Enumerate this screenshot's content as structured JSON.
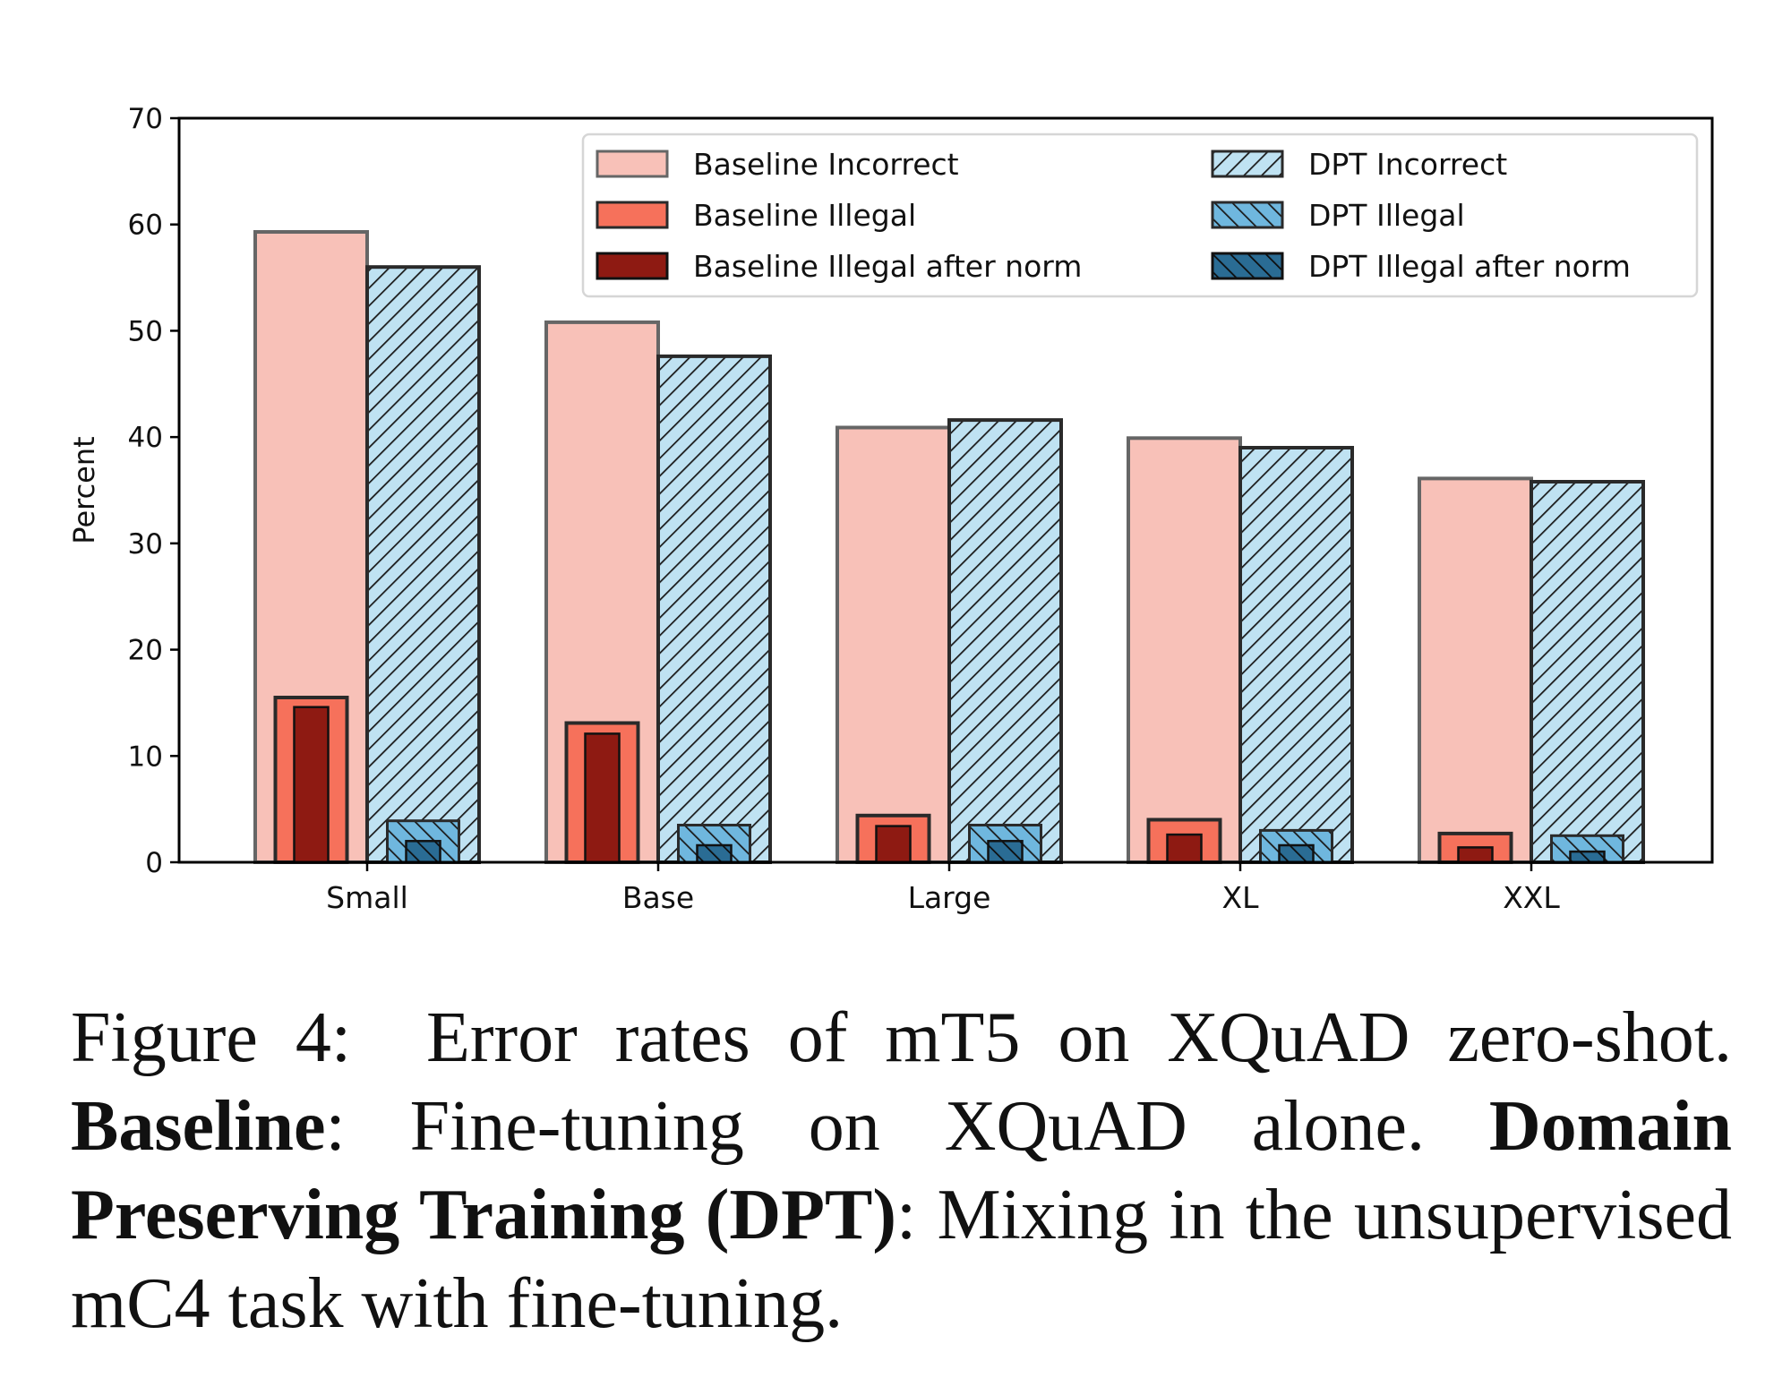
{
  "colors": {
    "baseline_incorrect": "#f8c1b8",
    "baseline_illegal": "#f6715b",
    "baseline_illegal_after_norm": "#8e1a12",
    "dpt_incorrect": "#bfe2f2",
    "dpt_illegal": "#6fb7de",
    "dpt_illegal_after_norm": "#2a6c94",
    "edge": "#222222",
    "hatch": "#1a1a1a"
  },
  "chart_data": {
    "type": "bar",
    "ylabel": "Percent",
    "ylim": [
      0,
      70
    ],
    "yticks": [
      "0",
      "10",
      "20",
      "30",
      "40",
      "50",
      "60",
      "70"
    ],
    "categories": [
      "Small",
      "Base",
      "Large",
      "XL",
      "XXL"
    ],
    "grid": false,
    "legend": {
      "placement": "top-right",
      "columns": 2
    },
    "series": [
      {
        "name": "Baseline Incorrect",
        "group": "Baseline",
        "values": [
          59.3,
          50.8,
          40.9,
          39.9,
          36.1
        ]
      },
      {
        "name": "Baseline Illegal",
        "group": "Baseline",
        "values": [
          15.5,
          13.1,
          4.4,
          4.0,
          2.7
        ]
      },
      {
        "name": "Baseline Illegal after norm",
        "group": "Baseline",
        "values": [
          14.6,
          12.1,
          3.4,
          2.6,
          1.4
        ]
      },
      {
        "name": "DPT Incorrect",
        "group": "DPT",
        "values": [
          56.0,
          47.6,
          41.6,
          39.0,
          35.8
        ]
      },
      {
        "name": "DPT Illegal",
        "group": "DPT",
        "values": [
          3.9,
          3.5,
          3.5,
          3.0,
          2.5
        ]
      },
      {
        "name": "DPT Illegal after norm",
        "group": "DPT",
        "values": [
          2.0,
          1.6,
          2.0,
          1.6,
          1.0
        ]
      }
    ]
  },
  "caption": {
    "label": "Figure 4:",
    "text": "Error rates of mT5 on XQuAD zero-shot.",
    "baseline_term": "Baseline",
    "baseline_desc": ": Fine-tuning on XQuAD alone.",
    "dpt_term": "Domain Preserving Training (DPT)",
    "dpt_desc": ": Mixing in the unsupervised mC4 task with fine-tuning."
  }
}
